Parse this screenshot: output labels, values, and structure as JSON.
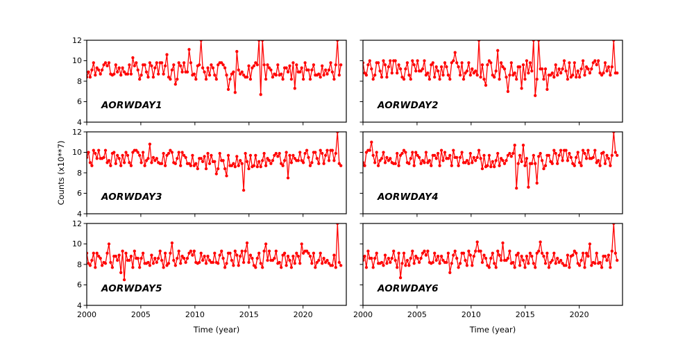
{
  "chart_data": {
    "type": "line",
    "layout": "3x2 subplot grid",
    "marker": "circle",
    "line_color": "#ff0000",
    "xlabel": "Time (year)",
    "ylabel": "Counts (x10**7)",
    "xlim": [
      2000,
      2024
    ],
    "ylim": [
      4,
      12
    ],
    "xticks": [
      2000,
      2005,
      2010,
      2015,
      2020
    ],
    "yticks": [
      4,
      6,
      8,
      10,
      12
    ],
    "x_start": 2000,
    "x_end": 2023.5,
    "series": [
      {
        "name": "AORWDAY1",
        "values": [
          8.4,
          8.9,
          8.4,
          9.1,
          9.8,
          8.6,
          9.3,
          9.1,
          8.7,
          9.1,
          9.6,
          9.8,
          9.5,
          9.8,
          8.7,
          8.6,
          8.7,
          9.6,
          8.9,
          9.3,
          8.6,
          9.3,
          8.9,
          8.7,
          8.7,
          9.6,
          8.7,
          10.3,
          9.5,
          9.8,
          9.1,
          8.2,
          8.6,
          9.6,
          9.6,
          8.9,
          8.4,
          9.8,
          9.5,
          8.4,
          9.3,
          9.8,
          8.7,
          9.8,
          9.8,
          8.7,
          9.5,
          10.6,
          8.4,
          8.2,
          9.1,
          9.6,
          7.7,
          8.2,
          9.8,
          9.5,
          8.9,
          9.8,
          8.9,
          8.9,
          11.1,
          9.8,
          8.6,
          8.7,
          8.2,
          9.5,
          9.6,
          12,
          9.3,
          8.9,
          8.2,
          9.3,
          8.6,
          9.6,
          9.3,
          8.6,
          8.2,
          9.6,
          9.8,
          9.8,
          9.6,
          9.3,
          8.6,
          7.2,
          8.2,
          8.7,
          8.9,
          6.9,
          10.9,
          9.1,
          8.7,
          8.9,
          8.6,
          8.4,
          8.4,
          9.5,
          8.2,
          9.3,
          9.5,
          9.8,
          9.6,
          12,
          6.7,
          12,
          9.6,
          8.2,
          9.6,
          9.3,
          9.1,
          8.4,
          8.7,
          8.6,
          9.6,
          8.6,
          8.7,
          8.2,
          9.3,
          9.3,
          8.9,
          9.5,
          8.2,
          9.8,
          7.3,
          9.6,
          8.9,
          8.9,
          9.3,
          8.2,
          9.8,
          9.1,
          9.1,
          8.2,
          9.1,
          9.6,
          8.6,
          8.6,
          8.7,
          8.4,
          9.5,
          8.6,
          9.1,
          8.7,
          9.1,
          9.8,
          8.9,
          8.2,
          9.6,
          12,
          8.6,
          9.6
        ]
      },
      {
        "name": "AORWDAY2",
        "values": [
          9.8,
          8.8,
          8.6,
          9.6,
          10.0,
          9.2,
          8.2,
          8.6,
          9.8,
          9.8,
          9.0,
          8.4,
          10.0,
          9.6,
          8.4,
          9.4,
          10.0,
          8.8,
          10.0,
          10.0,
          8.8,
          9.6,
          9.2,
          8.4,
          8.2,
          9.2,
          9.8,
          8.6,
          8.2,
          10.0,
          9.6,
          9.0,
          10.0,
          9.0,
          9.0,
          9.2,
          10.0,
          8.6,
          8.8,
          8.2,
          9.6,
          9.8,
          8.4,
          9.4,
          9.0,
          8.2,
          9.4,
          8.6,
          9.8,
          9.4,
          8.6,
          8.2,
          9.8,
          10.0,
          10.8,
          9.8,
          9.4,
          8.6,
          9.8,
          8.2,
          8.8,
          9.0,
          9.8,
          8.6,
          9.2,
          8.8,
          9.0,
          8.6,
          12,
          8.4,
          9.6,
          8.2,
          7.6,
          9.6,
          10.0,
          9.8,
          8.6,
          8.4,
          9.0,
          11.0,
          8.2,
          9.8,
          9.4,
          9.2,
          8.4,
          7.0,
          8.6,
          9.8,
          8.6,
          8.8,
          8.2,
          9.4,
          9.4,
          7.3,
          9.6,
          8.2,
          10.0,
          8.8,
          9.8,
          9.0,
          12,
          6.6,
          8.2,
          12,
          9.2,
          9.2,
          8.2,
          9.2,
          7.2,
          8.6,
          8.6,
          8.8,
          8.4,
          9.6,
          8.6,
          9.2,
          8.8,
          9.2,
          10.0,
          9.0,
          8.2,
          9.8,
          8.4,
          8.6,
          9.8,
          8.4,
          9.0,
          8.4,
          9.2,
          10.0,
          8.6,
          9.4,
          9.2,
          8.8,
          9.2,
          9.8,
          10.0,
          9.6,
          10.0,
          8.8,
          8.6,
          8.8,
          9.8,
          9.0,
          9.4,
          8.6,
          9.4,
          12,
          8.8,
          8.8
        ]
      },
      {
        "name": "AORWDAY3",
        "values": [
          9.5,
          10.0,
          9.0,
          8.7,
          10.2,
          9.9,
          9.4,
          10.2,
          9.4,
          9.4,
          9.5,
          10.2,
          9.0,
          9.2,
          8.7,
          9.9,
          10.0,
          8.9,
          9.7,
          9.4,
          8.7,
          9.7,
          9.0,
          10.0,
          9.7,
          9.0,
          8.7,
          10.0,
          10.2,
          10.2,
          10.0,
          9.7,
          9.0,
          10.0,
          8.7,
          9.2,
          9.4,
          10.8,
          9.0,
          9.5,
          9.2,
          9.4,
          9.0,
          8.9,
          8.9,
          9.9,
          8.7,
          9.7,
          9.9,
          10.2,
          10.0,
          9.0,
          8.9,
          9.4,
          10.0,
          8.7,
          10.0,
          9.7,
          9.5,
          8.9,
          8.9,
          8.7,
          9.7,
          8.7,
          8.9,
          8.4,
          9.4,
          9.4,
          9.1,
          9.6,
          8.4,
          9.9,
          8.9,
          9.7,
          9.1,
          9.1,
          7.9,
          8.4,
          9.9,
          9.2,
          9.2,
          8.4,
          7.7,
          9.7,
          8.7,
          8.7,
          8.9,
          8.6,
          9.6,
          8.7,
          9.2,
          8.9,
          6.3,
          9.9,
          9.1,
          8.4,
          9.7,
          8.6,
          8.7,
          9.7,
          8.6,
          9.1,
          8.6,
          9.2,
          9.9,
          8.7,
          9.4,
          9.2,
          8.9,
          9.2,
          9.7,
          9.9,
          9.6,
          9.9,
          8.9,
          8.7,
          9.2,
          10.0,
          7.5,
          9.7,
          9.0,
          9.7,
          9.4,
          9.2,
          9.2,
          10.0,
          9.2,
          9.0,
          9.9,
          10.2,
          9.5,
          8.7,
          9.0,
          10.0,
          10.0,
          9.4,
          8.9,
          10.2,
          9.9,
          8.9,
          9.7,
          10.2,
          9.2,
          10.2,
          10.2,
          9.2,
          9.9,
          12,
          8.9,
          8.7
        ]
      },
      {
        "name": "AORWDAY4",
        "values": [
          9.0,
          8.7,
          10.0,
          10.2,
          10.2,
          11.0,
          9.7,
          9.0,
          10.0,
          8.7,
          9.2,
          9.4,
          10.0,
          9.0,
          9.5,
          9.2,
          9.4,
          9.0,
          8.9,
          8.9,
          9.9,
          8.7,
          9.7,
          9.9,
          10.2,
          10.0,
          9.0,
          8.9,
          9.4,
          10.0,
          8.7,
          10.0,
          9.7,
          9.5,
          8.9,
          9.2,
          9.0,
          10.0,
          9.0,
          9.2,
          8.7,
          9.7,
          9.7,
          9.4,
          9.9,
          8.7,
          10.2,
          9.2,
          10.0,
          9.4,
          9.4,
          9.7,
          8.7,
          10.2,
          9.5,
          9.5,
          8.7,
          9.5,
          10.0,
          9.0,
          9.0,
          9.2,
          8.9,
          9.9,
          9.0,
          9.5,
          9.2,
          9.5,
          10.2,
          9.4,
          8.4,
          9.7,
          8.6,
          8.7,
          9.7,
          8.6,
          9.1,
          8.6,
          9.2,
          9.9,
          8.7,
          9.4,
          9.2,
          8.9,
          9.2,
          9.7,
          9.9,
          9.6,
          9.9,
          10.7,
          6.5,
          8.9,
          9.7,
          9.1,
          10.7,
          8.7,
          9.4,
          6.6,
          8.9,
          8.9,
          9.7,
          8.9,
          7.0,
          9.6,
          9.9,
          9.2,
          8.4,
          8.7,
          9.7,
          9.7,
          9.1,
          8.9,
          10.2,
          9.9,
          8.9,
          9.7,
          10.2,
          9.2,
          10.2,
          10.2,
          9.2,
          9.9,
          9.5,
          8.9,
          8.7,
          9.5,
          10.0,
          9.0,
          8.7,
          10.2,
          9.9,
          9.4,
          10.2,
          9.4,
          9.4,
          9.5,
          10.2,
          9.0,
          9.2,
          8.7,
          9.9,
          10.0,
          8.9,
          9.7,
          9.4,
          8.7,
          9.7,
          12,
          10.0,
          9.7
        ]
      },
      {
        "name": "AORWDAY5",
        "values": [
          9.1,
          8.1,
          7.9,
          8.4,
          9.1,
          7.7,
          9.1,
          8.8,
          8.6,
          7.9,
          8.2,
          8.1,
          9.1,
          10.0,
          8.2,
          7.7,
          8.8,
          8.8,
          8.4,
          8.9,
          7.2,
          9.3,
          6.5,
          9.1,
          8.4,
          8.4,
          8.8,
          7.7,
          9.3,
          8.6,
          8.6,
          7.7,
          8.6,
          9.1,
          8.1,
          8.1,
          8.2,
          7.9,
          8.9,
          8.1,
          8.6,
          8.2,
          8.6,
          9.3,
          8.4,
          7.7,
          9.1,
          7.9,
          8.1,
          9.1,
          10.1,
          8.4,
          7.9,
          8.6,
          9.3,
          8.1,
          8.8,
          8.6,
          8.2,
          8.6,
          9.1,
          9.3,
          8.9,
          9.3,
          8.2,
          8.1,
          8.2,
          9.1,
          8.4,
          8.8,
          8.1,
          8.8,
          8.4,
          8.2,
          8.2,
          9.1,
          8.2,
          8.1,
          8.9,
          9.3,
          8.6,
          7.7,
          8.1,
          9.1,
          9.1,
          8.4,
          7.9,
          9.3,
          8.9,
          7.9,
          8.8,
          9.3,
          8.2,
          9.3,
          10.1,
          8.2,
          8.9,
          8.6,
          7.9,
          7.7,
          8.6,
          9.1,
          8.1,
          7.7,
          9.3,
          10.0,
          8.4,
          9.3,
          8.4,
          8.4,
          8.6,
          9.3,
          8.1,
          8.2,
          7.7,
          8.9,
          9.1,
          7.9,
          8.8,
          8.4,
          7.7,
          8.8,
          8.1,
          9.1,
          8.8,
          8.1,
          10.0,
          9.1,
          9.3,
          9.3,
          9.1,
          8.8,
          8.1,
          9.1,
          7.7,
          8.2,
          8.4,
          9.1,
          8.1,
          8.6,
          8.2,
          8.4,
          8.1,
          7.9,
          7.9,
          8.9,
          7.7,
          12,
          8.2,
          7.9
        ]
      },
      {
        "name": "AORWDAY6",
        "values": [
          8.4,
          8.8,
          7.7,
          9.3,
          8.6,
          8.6,
          7.7,
          8.6,
          9.1,
          8.1,
          8.1,
          8.2,
          7.9,
          8.9,
          8.1,
          8.6,
          8.2,
          8.6,
          9.3,
          8.4,
          7.7,
          9.1,
          6.7,
          8.1,
          9.1,
          7.9,
          8.4,
          7.9,
          8.6,
          9.3,
          8.1,
          8.8,
          8.6,
          8.2,
          8.6,
          9.1,
          9.3,
          8.9,
          9.3,
          8.2,
          8.1,
          8.2,
          9.1,
          8.4,
          8.8,
          8.1,
          8.8,
          8.4,
          8.2,
          8.2,
          9.1,
          7.2,
          8.1,
          8.9,
          9.3,
          8.6,
          7.7,
          8.1,
          9.1,
          9.1,
          8.4,
          7.9,
          9.3,
          8.9,
          7.9,
          8.8,
          9.3,
          10.2,
          9.3,
          9.3,
          8.2,
          8.9,
          8.6,
          7.9,
          7.7,
          8.6,
          9.1,
          8.1,
          7.7,
          9.3,
          8.9,
          8.4,
          10.1,
          8.4,
          8.4,
          8.6,
          9.3,
          8.1,
          8.2,
          7.7,
          8.9,
          9.1,
          7.9,
          8.8,
          8.4,
          7.7,
          8.8,
          8.1,
          9.1,
          8.8,
          8.1,
          7.7,
          9.1,
          9.3,
          10.2,
          9.1,
          8.8,
          8.1,
          9.1,
          7.7,
          8.2,
          8.4,
          9.1,
          8.1,
          8.6,
          8.2,
          8.4,
          8.1,
          7.9,
          7.9,
          8.9,
          7.7,
          8.8,
          8.9,
          9.3,
          9.1,
          8.1,
          7.9,
          8.4,
          9.1,
          7.7,
          9.1,
          8.8,
          10.0,
          7.9,
          8.2,
          8.1,
          9.1,
          8.1,
          8.2,
          7.7,
          8.8,
          8.8,
          8.4,
          8.9,
          7.7,
          9.3,
          12,
          9.1,
          8.4
        ]
      }
    ]
  }
}
